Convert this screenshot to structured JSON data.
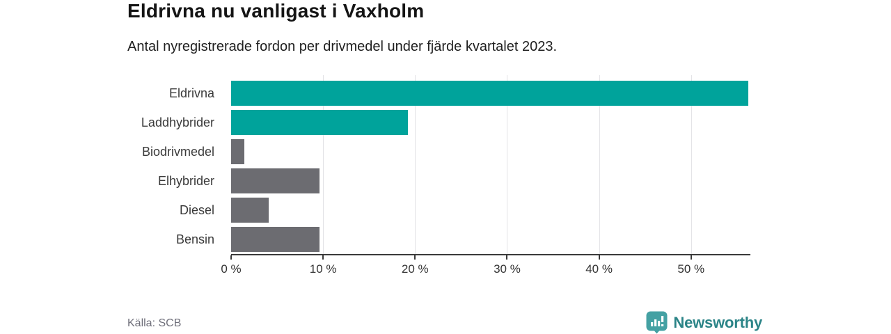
{
  "header": {
    "title": "Eldrivna nu vanligast i Vaxholm",
    "subtitle": "Antal nyregistrerade fordon per drivmedel under fjärde kvartalet 2023."
  },
  "chart_data": {
    "type": "bar",
    "orientation": "horizontal",
    "title": "Eldrivna nu vanligast i Vaxholm",
    "subtitle": "Antal nyregistrerade fordon per drivmedel under fjärde kvartalet 2023.",
    "categories": [
      "Eldrivna",
      "Laddhybrider",
      "Biodrivmedel",
      "Elhybrider",
      "Diesel",
      "Bensin"
    ],
    "values": [
      56.2,
      19.2,
      1.4,
      9.6,
      4.1,
      9.6
    ],
    "bar_colors": [
      "#00a39b",
      "#00a39b",
      "#6c6c71",
      "#6c6c71",
      "#6c6c71",
      "#6c6c71"
    ],
    "xlabel": "",
    "ylabel": "",
    "xlim": [
      0,
      56.3
    ],
    "x_ticks": [
      0,
      10,
      20,
      30,
      40,
      50
    ],
    "x_tick_labels": [
      "0 %",
      "10 %",
      "20 %",
      "30 %",
      "40 %",
      "50 %"
    ],
    "grid": "vertical-only",
    "legend": false
  },
  "footer": {
    "source": "Källa: SCB",
    "brand": "Newsworthy"
  },
  "icons": {
    "logo_mark": "newsworthy-bar-chart-bubble"
  },
  "colors": {
    "accent_teal": "#00a39b",
    "muted_gray_bar": "#6c6c71",
    "axis": "#3a3a3a",
    "gridline": "#e3e3e6",
    "title_text": "#141414",
    "source_text": "#6f6f7a",
    "brand_text_teal": "#2b8487",
    "logo_fill_teal": "#44a1a3"
  }
}
